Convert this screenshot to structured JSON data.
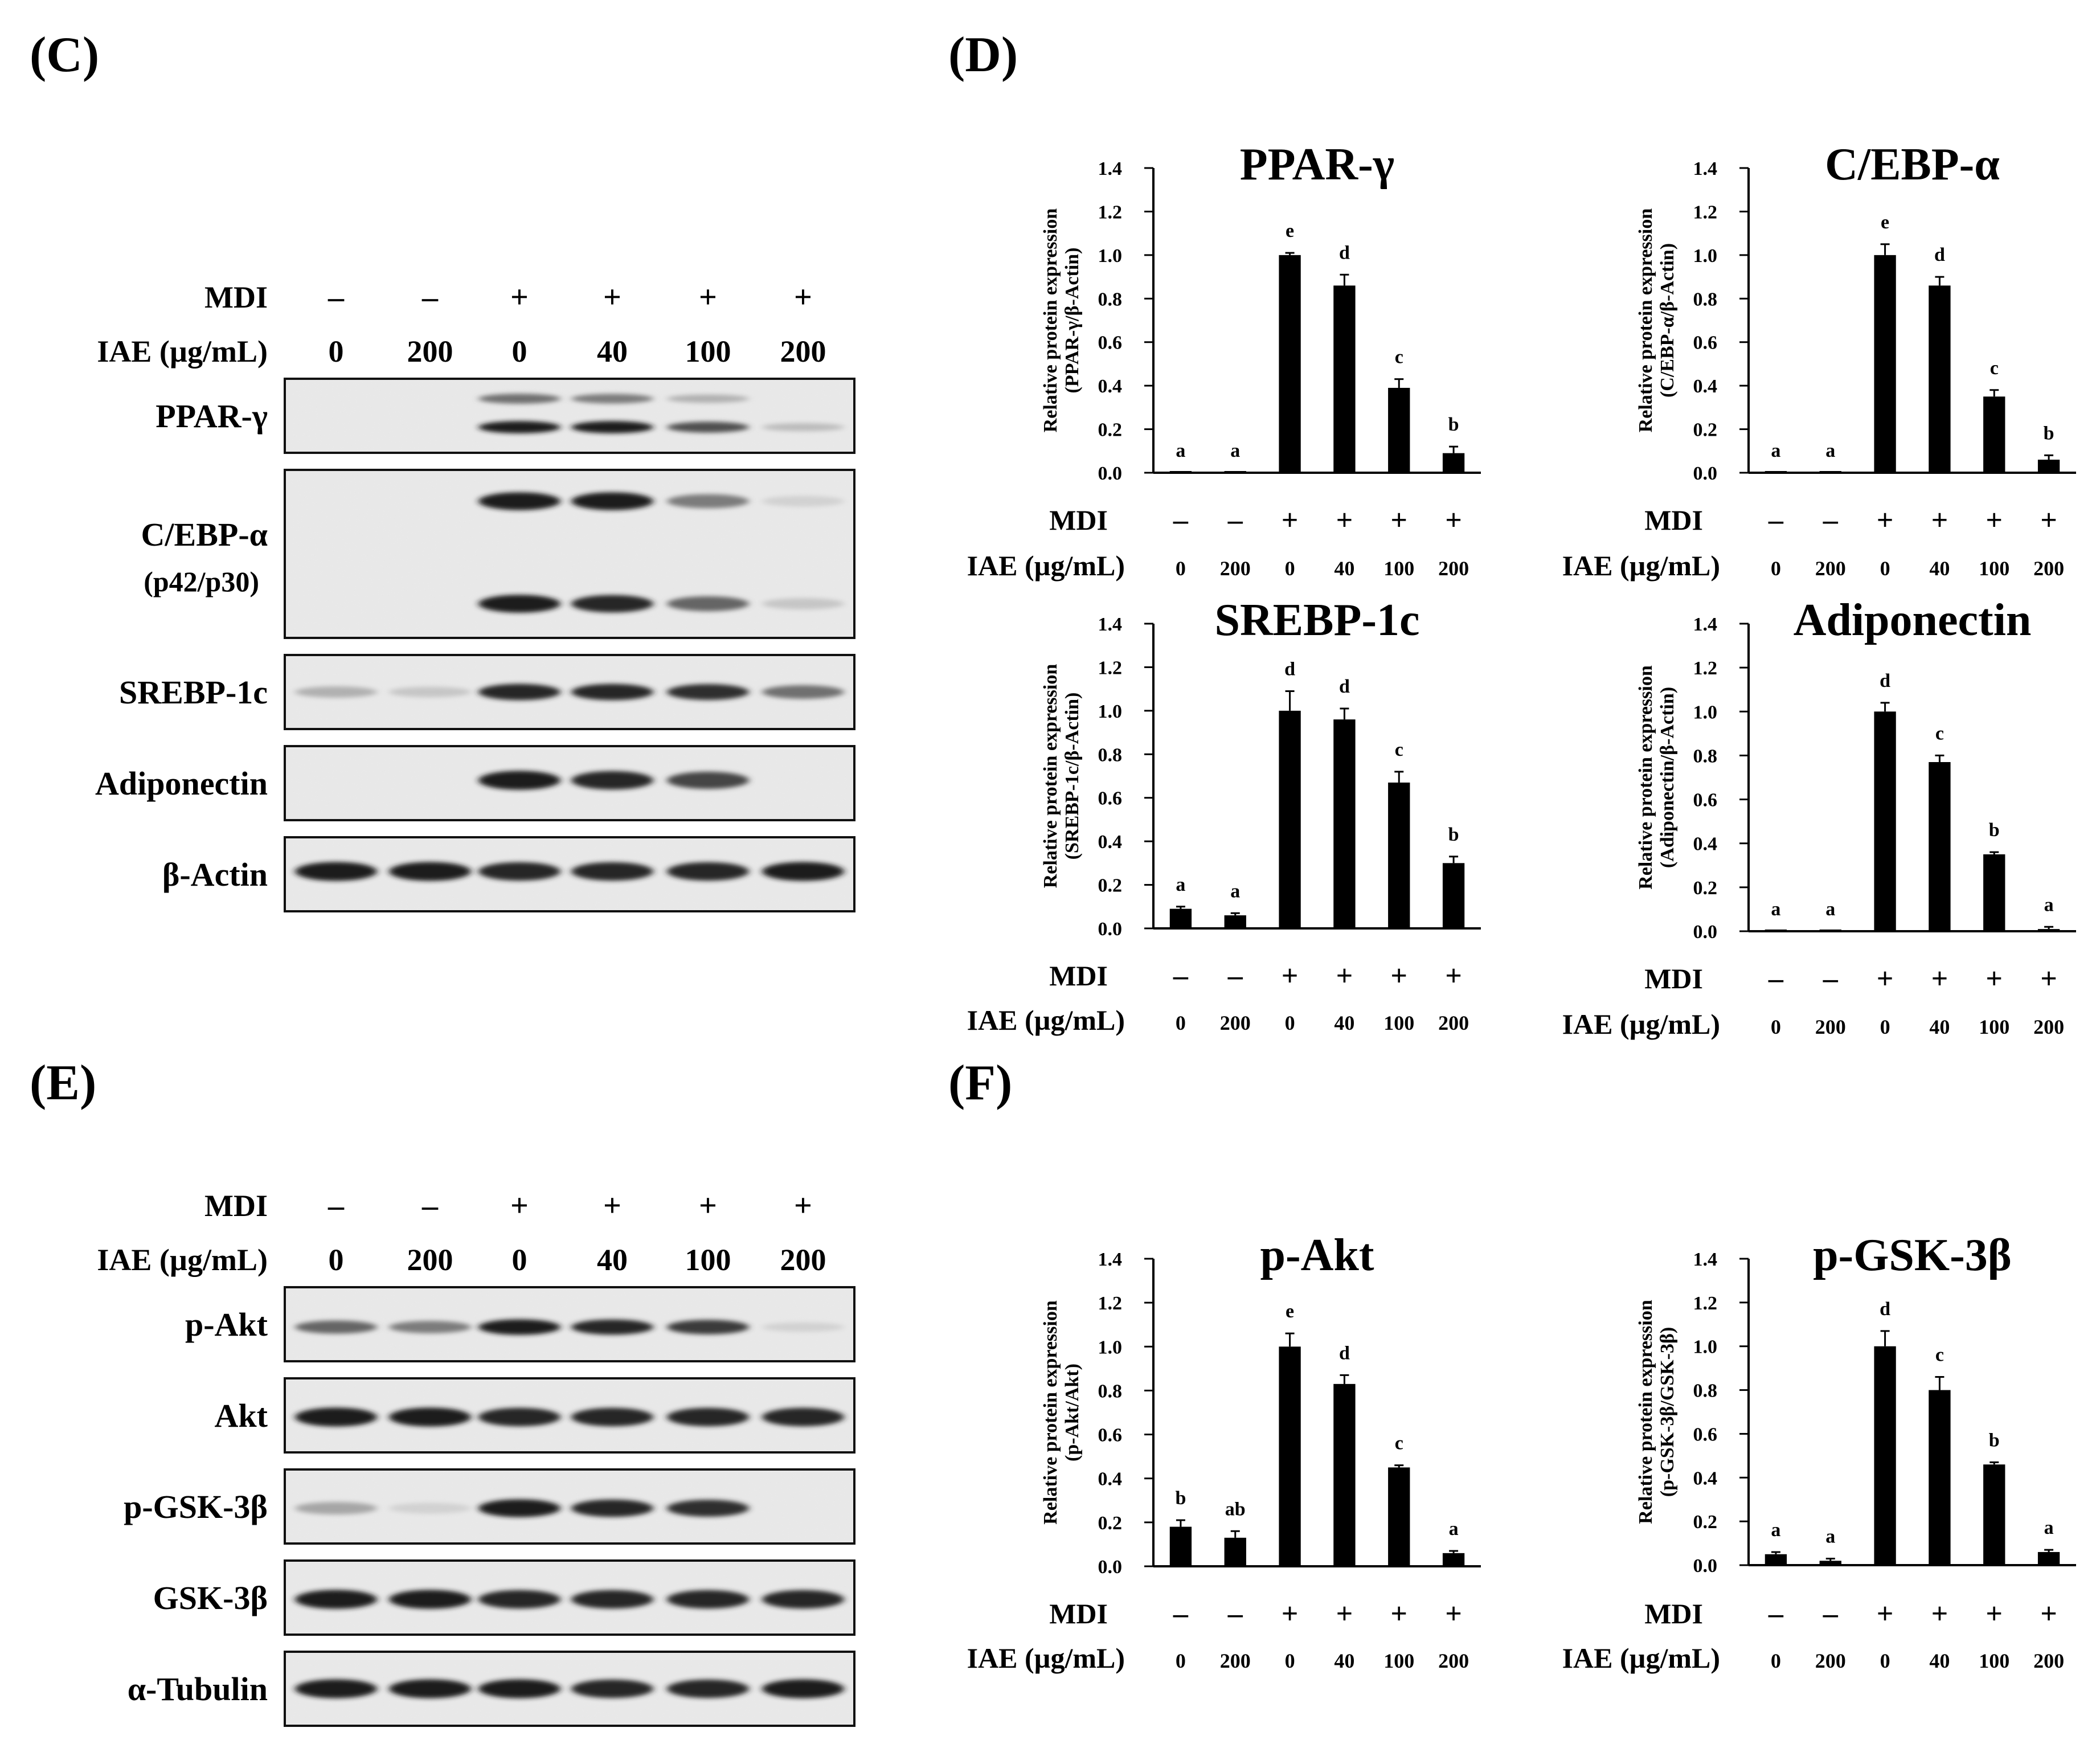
{
  "panels": {
    "c": "(C)",
    "d": "(D)",
    "e": "(E)",
    "f": "(F)"
  },
  "treatment": {
    "mdi_label": "MDI",
    "iae_label": "IAE (µg/mL)",
    "mdi": [
      "–",
      "–",
      "+",
      "+",
      "+",
      "+"
    ],
    "iae": [
      "0",
      "200",
      "0",
      "40",
      "100",
      "200"
    ]
  },
  "blots": {
    "c": [
      {
        "label": "PPAR-γ",
        "bands": [
          [
            0,
            0,
            0.55,
            0.5,
            0.25,
            0
          ],
          [
            0,
            0,
            0.95,
            0.95,
            0.7,
            0.2
          ]
        ]
      },
      {
        "label": "C/EBP-α",
        "sublabel": "(p42/p30)",
        "bands": [
          [
            0,
            0,
            0.95,
            0.95,
            0.5,
            0.1
          ],
          [
            0,
            0,
            0.95,
            0.9,
            0.6,
            0.15
          ]
        ]
      },
      {
        "label": "SREBP-1c",
        "bands": [
          [
            0.25,
            0.15,
            0.9,
            0.9,
            0.85,
            0.55
          ]
        ]
      },
      {
        "label": "Adiponectin",
        "bands": [
          [
            0,
            0,
            0.95,
            0.9,
            0.75,
            0
          ]
        ]
      },
      {
        "label": "β-Actin",
        "bands": [
          [
            0.95,
            0.95,
            0.9,
            0.9,
            0.9,
            0.95
          ]
        ]
      }
    ],
    "e": [
      {
        "label": "p-Akt",
        "bands": [
          [
            0.6,
            0.5,
            0.95,
            0.9,
            0.8,
            0.1
          ]
        ]
      },
      {
        "label": "Akt",
        "bands": [
          [
            0.95,
            0.95,
            0.9,
            0.9,
            0.9,
            0.9
          ]
        ]
      },
      {
        "label": "p-GSK-3β",
        "bands": [
          [
            0.3,
            0.1,
            0.95,
            0.9,
            0.85,
            0
          ]
        ]
      },
      {
        "label": "GSK-3β",
        "bands": [
          [
            0.95,
            0.95,
            0.9,
            0.9,
            0.9,
            0.9
          ]
        ]
      },
      {
        "label": "α-Tubulin",
        "bands": [
          [
            0.95,
            0.95,
            0.95,
            0.9,
            0.9,
            0.95
          ]
        ]
      }
    ]
  },
  "chart_data": [
    {
      "type": "bar",
      "title": "PPAR-γ",
      "ylabel": "Relative protein expression",
      "ylabel2": "(PPAR-γ/β-Actin)",
      "categories": [
        "0",
        "200",
        "0",
        "40",
        "100",
        "200"
      ],
      "values": [
        0.0,
        0.0,
        1.0,
        0.86,
        0.39,
        0.09
      ],
      "errors": [
        0,
        0,
        0.01,
        0.05,
        0.04,
        0.03
      ],
      "letters": [
        "a",
        "a",
        "e",
        "d",
        "c",
        "b"
      ],
      "ylim": [
        0,
        1.4
      ],
      "yticks": [
        "0.0",
        "0.2",
        "0.4",
        "0.6",
        "0.8",
        "1.0",
        "1.2",
        "1.4"
      ]
    },
    {
      "type": "bar",
      "title": "C/EBP-α",
      "ylabel": "Relative protein expression",
      "ylabel2": "(C/EBP-α/β-Actin)",
      "categories": [
        "0",
        "200",
        "0",
        "40",
        "100",
        "200"
      ],
      "values": [
        0.0,
        0.0,
        1.0,
        0.86,
        0.35,
        0.06
      ],
      "errors": [
        0,
        0,
        0.05,
        0.04,
        0.03,
        0.02
      ],
      "letters": [
        "a",
        "a",
        "e",
        "d",
        "c",
        "b"
      ],
      "ylim": [
        0,
        1.4
      ],
      "yticks": [
        "0.0",
        "0.2",
        "0.4",
        "0.6",
        "0.8",
        "1.0",
        "1.2",
        "1.4"
      ]
    },
    {
      "type": "bar",
      "title": "SREBP-1c",
      "ylabel": "Relative protein expression",
      "ylabel2": "(SREBP-1c/β-Actin)",
      "categories": [
        "0",
        "200",
        "0",
        "40",
        "100",
        "200"
      ],
      "values": [
        0.09,
        0.06,
        1.0,
        0.96,
        0.67,
        0.3
      ],
      "errors": [
        0.01,
        0.01,
        0.09,
        0.05,
        0.05,
        0.03
      ],
      "letters": [
        "a",
        "a",
        "d",
        "d",
        "c",
        "b"
      ],
      "ylim": [
        0,
        1.4
      ],
      "yticks": [
        "0.0",
        "0.2",
        "0.4",
        "0.6",
        "0.8",
        "1.0",
        "1.2",
        "1.4"
      ]
    },
    {
      "type": "bar",
      "title": "Adiponectin",
      "ylabel": "Relative protein expression",
      "ylabel2": "(Adiponectin/β-Actin)",
      "categories": [
        "0",
        "200",
        "0",
        "40",
        "100",
        "200"
      ],
      "values": [
        0.0,
        0.0,
        1.0,
        0.77,
        0.35,
        0.01
      ],
      "errors": [
        0,
        0,
        0.04,
        0.03,
        0.01,
        0.01
      ],
      "letters": [
        "a",
        "a",
        "d",
        "c",
        "b",
        "a"
      ],
      "ylim": [
        0,
        1.4
      ],
      "yticks": [
        "0.0",
        "0.2",
        "0.4",
        "0.6",
        "0.8",
        "1.0",
        "1.2",
        "1.4"
      ]
    },
    {
      "type": "bar",
      "title": "p-Akt",
      "ylabel": "Relative protein expression",
      "ylabel2": "(p-Akt/Akt)",
      "categories": [
        "0",
        "200",
        "0",
        "40",
        "100",
        "200"
      ],
      "values": [
        0.18,
        0.13,
        1.0,
        0.83,
        0.45,
        0.06
      ],
      "errors": [
        0.03,
        0.03,
        0.06,
        0.04,
        0.01,
        0.01
      ],
      "letters": [
        "b",
        "ab",
        "e",
        "d",
        "c",
        "a"
      ],
      "ylim": [
        0,
        1.4
      ],
      "yticks": [
        "0.0",
        "0.2",
        "0.4",
        "0.6",
        "0.8",
        "1.0",
        "1.2",
        "1.4"
      ]
    },
    {
      "type": "bar",
      "title": "p-GSK-3β",
      "ylabel": "Relative protein expression",
      "ylabel2": "(p-GSK-3β/GSK-3β)",
      "categories": [
        "0",
        "200",
        "0",
        "40",
        "100",
        "200"
      ],
      "values": [
        0.05,
        0.02,
        1.0,
        0.8,
        0.46,
        0.06
      ],
      "errors": [
        0.01,
        0.01,
        0.07,
        0.06,
        0.01,
        0.01
      ],
      "letters": [
        "a",
        "a",
        "d",
        "c",
        "b",
        "a"
      ],
      "ylim": [
        0,
        1.4
      ],
      "yticks": [
        "0.0",
        "0.2",
        "0.4",
        "0.6",
        "0.8",
        "1.0",
        "1.2",
        "1.4"
      ]
    }
  ]
}
